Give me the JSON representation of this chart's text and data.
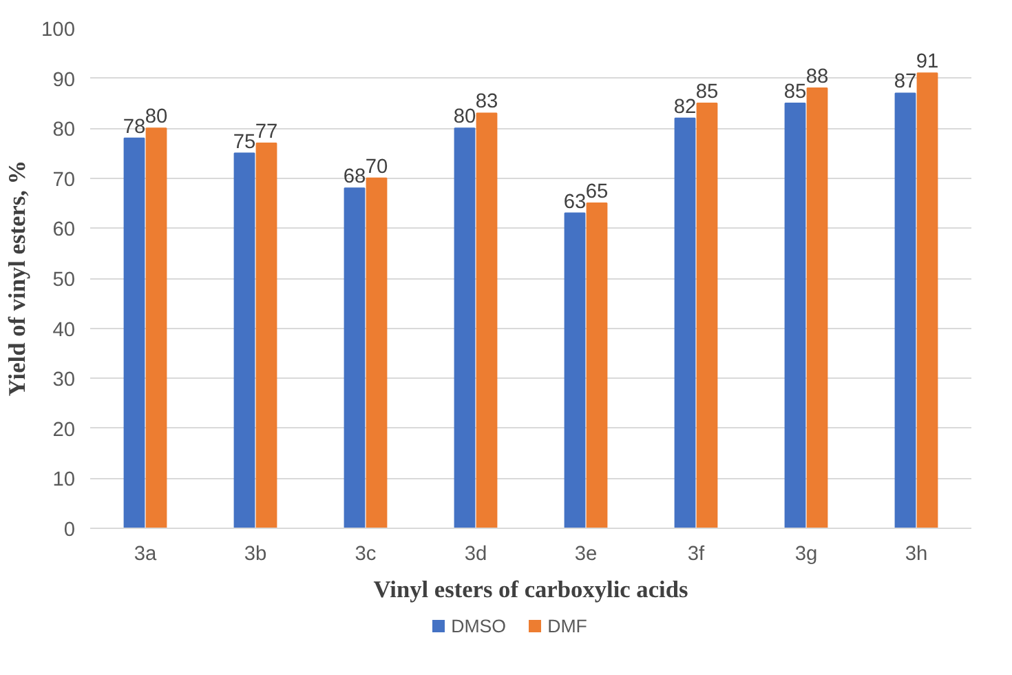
{
  "chart_data": {
    "type": "bar",
    "xlabel": "Vinyl esters of carboxylic acids",
    "ylabel": "Yield of vinyl esters, %",
    "categories": [
      "3a",
      "3b",
      "3c",
      "3d",
      "3e",
      "3f",
      "3g",
      "3h"
    ],
    "series": [
      {
        "name": "DMSO",
        "color": "#4472c4",
        "values": [
          78,
          75,
          68,
          80,
          63,
          82,
          85,
          87
        ]
      },
      {
        "name": "DMF",
        "color": "#ed7d31",
        "values": [
          80,
          77,
          70,
          83,
          65,
          85,
          88,
          91
        ]
      }
    ],
    "ylim": [
      0,
      100
    ],
    "yticks": [
      0,
      10,
      20,
      30,
      40,
      50,
      60,
      70,
      80,
      90,
      100
    ],
    "grid": "y",
    "legend": "bottom",
    "data_labels": true
  }
}
